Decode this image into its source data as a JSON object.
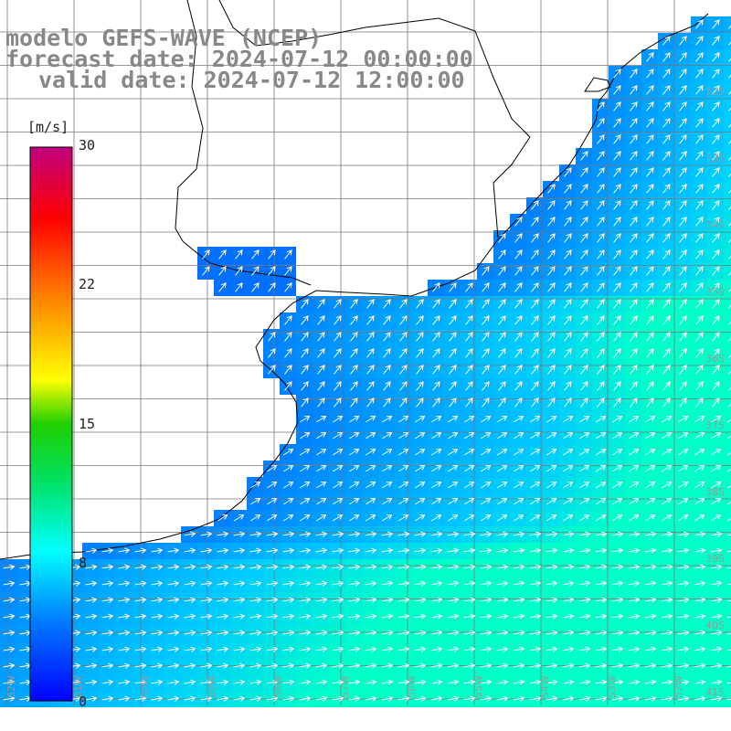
{
  "title": {
    "model": "modelo GEFS-WAVE (NCEP)",
    "forecast": "forecast date: 2024-07-12 00:00:00",
    "valid": "valid date: 2024-07-12 12:00:00"
  },
  "colorbar": {
    "unit": "[m/s]",
    "ticks": [
      "30",
      "22",
      "15",
      "8",
      "0"
    ],
    "tick_values": [
      30,
      22,
      15,
      8,
      0
    ],
    "min": 0,
    "max": 30,
    "stops": [
      "#0000ff",
      "#00a0ff",
      "#00ffff",
      "#00ff00",
      "#ffff00",
      "#ff8000",
      "#ff0000",
      "#c0007f"
    ]
  },
  "lat_labels": [
    "32S",
    "33S",
    "34S",
    "35S",
    "36S",
    "37S",
    "38S",
    "39S",
    "40S",
    "41S"
  ],
  "lon_labels": [
    "62W",
    "61W",
    "60W",
    "59W",
    "58W",
    "57W",
    "56W",
    "55W",
    "54W",
    "53W",
    "52W",
    "51W",
    "50W"
  ],
  "chart_data": {
    "type": "heatmap",
    "variable": "wind speed",
    "units": "m/s",
    "colorbar_range": [
      0,
      30
    ]
  }
}
